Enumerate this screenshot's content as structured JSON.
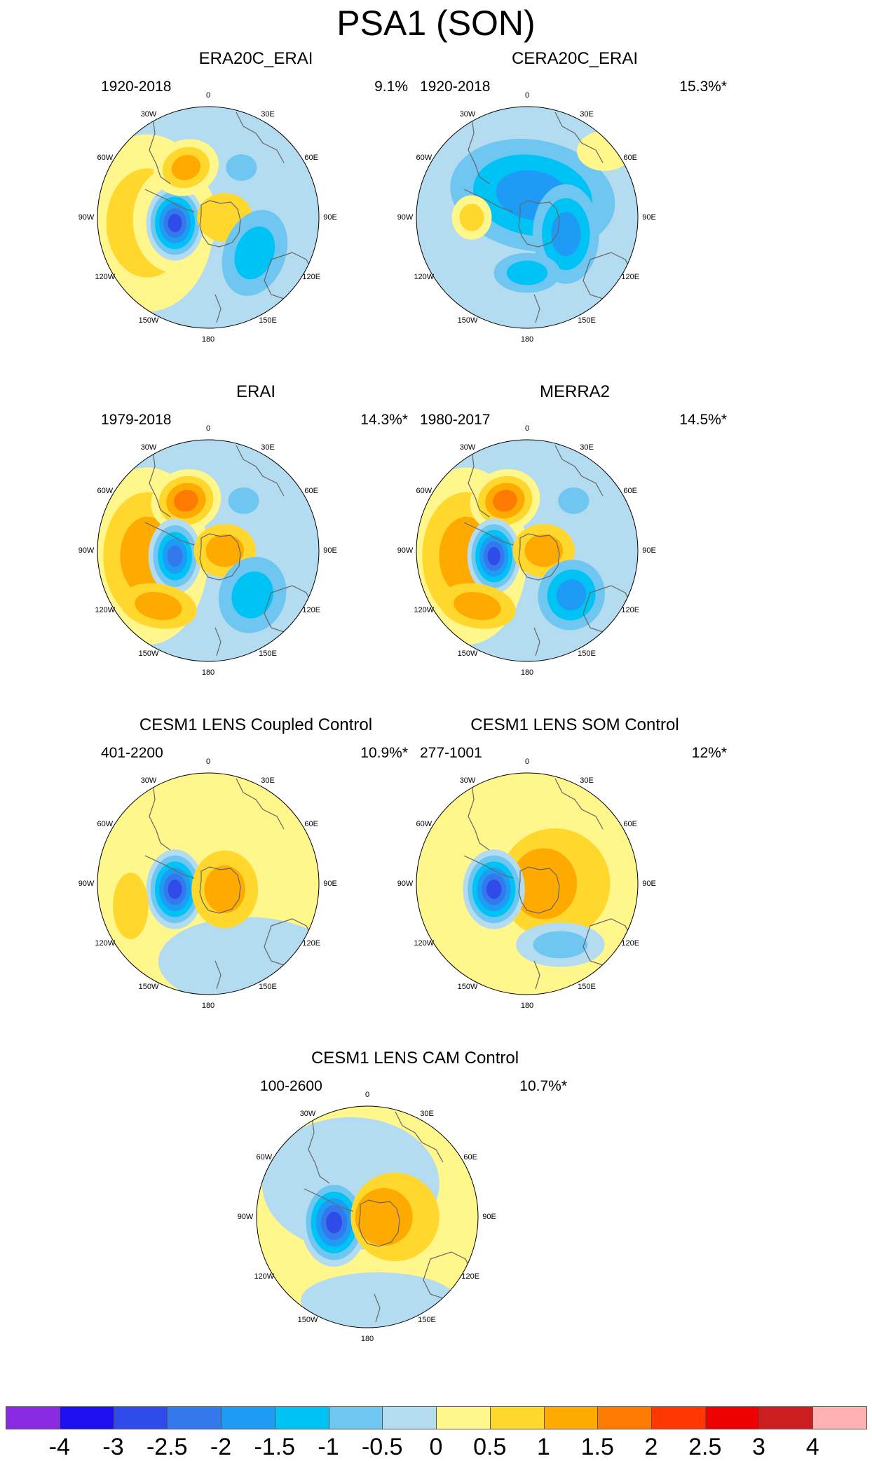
{
  "figure_title": "PSA1 (SON)",
  "panels": [
    {
      "title": "ERA20C_ERAI",
      "period": "1920-2018",
      "variance": "9.1%",
      "pattern": "era20c"
    },
    {
      "title": "CERA20C_ERAI",
      "period": "1920-2018",
      "variance": "15.3%*",
      "pattern": "cera20c"
    },
    {
      "title": "ERAI",
      "period": "1979-2018",
      "variance": "14.3%*",
      "pattern": "erai"
    },
    {
      "title": "MERRA2",
      "period": "1980-2017",
      "variance": "14.5%*",
      "pattern": "merra2"
    },
    {
      "title": "CESM1 LENS Coupled Control",
      "period": "401-2200",
      "variance": "10.9%*",
      "pattern": "coupled"
    },
    {
      "title": "CESM1 LENS SOM Control",
      "period": "277-1001",
      "variance": "12%*",
      "pattern": "som"
    },
    {
      "title": "CESM1 LENS CAM Control",
      "period": "100-2600",
      "variance": "10.7%*",
      "pattern": "cam"
    }
  ],
  "map_labels": [
    "0",
    "30E",
    "60E",
    "90E",
    "120E",
    "150E",
    "180",
    "150W",
    "120W",
    "90W",
    "60W",
    "30W"
  ],
  "colorbar": {
    "labels": [
      "-4",
      "-3",
      "-2.5",
      "-2",
      "-1.5",
      "-1",
      "-0.5",
      "0",
      "0.5",
      "1",
      "1.5",
      "2",
      "2.5",
      "3",
      "4"
    ],
    "colors": [
      "#8a2be2",
      "#1e0ff0",
      "#2f4bea",
      "#3479eb",
      "#1e9cf5",
      "#00c3f5",
      "#6fc6f0",
      "#b4dcf0",
      "#fff68c",
      "#ffd72d",
      "#ffaa00",
      "#ff7a00",
      "#ff3700",
      "#ee0000",
      "#cc1e1e",
      "#ffb2b2"
    ]
  }
}
